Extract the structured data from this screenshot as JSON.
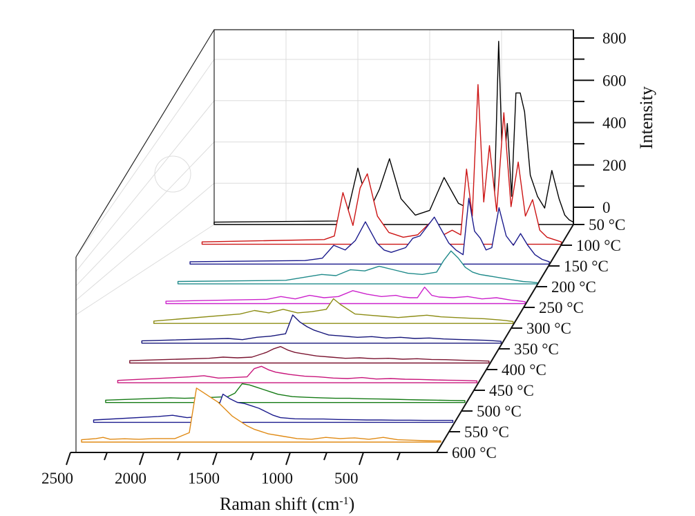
{
  "chart_data": {
    "type": "line",
    "subtype": "3d-waterfall",
    "xlabel_main": "Raman shift (cm",
    "xlabel_sup": "-1",
    "xlabel_close": ")",
    "zlabel": "Intensity",
    "x_ticks": [
      "2500",
      "2000",
      "1500",
      "1000",
      "500"
    ],
    "x_tick_values": [
      2500,
      2000,
      1500,
      1000,
      500
    ],
    "xlim": [
      2500,
      0
    ],
    "z_ticks": [
      "800",
      "600",
      "400",
      "200",
      "0"
    ],
    "z_tick_values": [
      800,
      600,
      400,
      200,
      0
    ],
    "zlim": [
      0,
      800
    ],
    "grid": true,
    "series": [
      {
        "name": "50 °C",
        "color": "#000000",
        "x": [
          2500,
          1650,
          1580,
          1500,
          1420,
          1350,
          1280,
          1200,
          1100,
          1000,
          900,
          800,
          700,
          600,
          550,
          520,
          490,
          460,
          430,
          400,
          370,
          340,
          300,
          250,
          200,
          150,
          100,
          60,
          30,
          0
        ],
        "values": [
          10,
          15,
          30,
          240,
          60,
          150,
          280,
          110,
          40,
          60,
          200,
          90,
          60,
          35,
          110,
          780,
          180,
          430,
          120,
          560,
          560,
          480,
          210,
          120,
          70,
          230,
          110,
          40,
          20,
          10
        ]
      },
      {
        "name": "100 °C",
        "color": "#cc1414",
        "x": [
          2500,
          1650,
          1580,
          1520,
          1450,
          1400,
          1350,
          1280,
          1200,
          1100,
          1000,
          900,
          820,
          760,
          700,
          660,
          620,
          580,
          540,
          500,
          450,
          400,
          350,
          300,
          250,
          200,
          150,
          100,
          50,
          0
        ],
        "values": [
          10,
          20,
          35,
          220,
          80,
          240,
          300,
          120,
          50,
          30,
          40,
          100,
          40,
          60,
          40,
          320,
          120,
          680,
          180,
          420,
          140,
          560,
          160,
          350,
          120,
          190,
          60,
          30,
          20,
          10
        ]
      },
      {
        "name": "150 °C",
        "color": "#1a1a8c",
        "x": [
          2500,
          1700,
          1580,
          1500,
          1420,
          1350,
          1280,
          1200,
          1150,
          1100,
          1000,
          950,
          900,
          800,
          700,
          650,
          600,
          560,
          520,
          480,
          440,
          400,
          350,
          300,
          250,
          200,
          150,
          100,
          50,
          0
        ],
        "values": [
          10,
          15,
          25,
          80,
          60,
          100,
          180,
          90,
          60,
          50,
          70,
          110,
          120,
          200,
          90,
          60,
          40,
          280,
          140,
          110,
          60,
          70,
          240,
          120,
          80,
          130,
          80,
          40,
          20,
          10
        ]
      },
      {
        "name": "200 °C",
        "color": "#1f8a8a",
        "x": [
          2500,
          1750,
          1600,
          1500,
          1400,
          1300,
          1200,
          1100,
          1000,
          900,
          800,
          700,
          650,
          600,
          550,
          500,
          450,
          400,
          350,
          300,
          250,
          200,
          150,
          100,
          50,
          0
        ],
        "values": [
          10,
          15,
          30,
          40,
          35,
          60,
          55,
          75,
          60,
          45,
          40,
          50,
          100,
          140,
          110,
          70,
          50,
          40,
          35,
          30,
          25,
          20,
          15,
          10,
          8,
          5
        ]
      },
      {
        "name": "250 °C",
        "color": "#cc22cc",
        "x": [
          2500,
          1800,
          1700,
          1600,
          1500,
          1400,
          1300,
          1200,
          1100,
          1000,
          900,
          850,
          800,
          750,
          700,
          650,
          600,
          500,
          400,
          300,
          200,
          100,
          50,
          0
        ],
        "values": [
          10,
          18,
          30,
          20,
          35,
          25,
          30,
          55,
          40,
          30,
          35,
          28,
          25,
          25,
          70,
          35,
          28,
          25,
          30,
          20,
          25,
          15,
          12,
          8
        ]
      },
      {
        "name": "300 °C",
        "color": "#8c8c14",
        "x": [
          2500,
          1900,
          1800,
          1700,
          1600,
          1500,
          1400,
          1300,
          1250,
          1200,
          1150,
          1100,
          1000,
          900,
          800,
          700,
          600,
          500,
          400,
          300,
          200,
          100,
          50,
          0
        ],
        "values": [
          10,
          40,
          55,
          45,
          60,
          45,
          50,
          60,
          105,
          80,
          60,
          40,
          35,
          30,
          25,
          30,
          35,
          28,
          25,
          22,
          20,
          15,
          12,
          8
        ]
      },
      {
        "name": "350 °C",
        "color": "#15157a",
        "x": [
          2500,
          1900,
          1800,
          1700,
          1600,
          1500,
          1450,
          1400,
          1350,
          1300,
          1250,
          1200,
          1100,
          1000,
          900,
          800,
          700,
          600,
          500,
          400,
          300,
          200,
          100,
          0
        ],
        "values": [
          10,
          20,
          15,
          25,
          30,
          40,
          120,
          90,
          70,
          55,
          45,
          35,
          30,
          25,
          28,
          22,
          25,
          20,
          22,
          18,
          16,
          14,
          12,
          8
        ]
      },
      {
        "name": "400 °C",
        "color": "#7a1430",
        "x": [
          2500,
          1950,
          1850,
          1750,
          1650,
          1550,
          1500,
          1450,
          1400,
          1350,
          1300,
          1200,
          1100,
          1000,
          900,
          800,
          700,
          600,
          500,
          400,
          300,
          200,
          100,
          0
        ],
        "values": [
          10,
          20,
          25,
          22,
          25,
          45,
          60,
          70,
          55,
          45,
          40,
          30,
          25,
          20,
          22,
          18,
          20,
          16,
          18,
          15,
          14,
          12,
          10,
          8
        ]
      },
      {
        "name": "450 °C",
        "color": "#c8147a",
        "x": [
          2500,
          2000,
          1900,
          1800,
          1700,
          1600,
          1550,
          1500,
          1450,
          1400,
          1350,
          1300,
          1200,
          1100,
          1000,
          900,
          800,
          700,
          600,
          500,
          400,
          300,
          200,
          100,
          0
        ],
        "values": [
          10,
          25,
          30,
          20,
          22,
          25,
          60,
          70,
          55,
          45,
          40,
          35,
          28,
          25,
          20,
          18,
          22,
          16,
          18,
          15,
          14,
          12,
          11,
          10,
          8
        ]
      },
      {
        "name": "500 °C",
        "color": "#147a14",
        "x": [
          2500,
          2050,
          1950,
          1850,
          1750,
          1650,
          1600,
          1550,
          1500,
          1450,
          1400,
          1350,
          1300,
          1200,
          1100,
          1000,
          900,
          800,
          700,
          600,
          500,
          400,
          300,
          200,
          100,
          0
        ],
        "values": [
          10,
          20,
          18,
          20,
          22,
          25,
          40,
          80,
          75,
          65,
          55,
          45,
          35,
          25,
          22,
          20,
          18,
          18,
          16,
          15,
          14,
          12,
          11,
          10,
          9,
          8
        ]
      },
      {
        "name": "550 °C",
        "color": "#1a1a8c",
        "x": [
          2500,
          2050,
          1950,
          1850,
          1750,
          1700,
          1650,
          1600,
          1550,
          1500,
          1450,
          1400,
          1350,
          1300,
          1250,
          1200,
          1100,
          1000,
          900,
          800,
          700,
          600,
          500,
          400,
          300,
          200,
          100,
          0
        ],
        "values": [
          10,
          25,
          30,
          20,
          25,
          30,
          35,
          120,
          100,
          85,
          80,
          70,
          60,
          45,
          30,
          20,
          15,
          14,
          14,
          12,
          11,
          10,
          10,
          9,
          9,
          8,
          8,
          8
        ]
      },
      {
        "name": "600 °C",
        "color": "#e08a14",
        "x": [
          2500,
          2400,
          2350,
          2300,
          2200,
          2100,
          2000,
          1850,
          1750,
          1700,
          1650,
          1600,
          1550,
          1500,
          1450,
          1400,
          1350,
          1300,
          1250,
          1200,
          1100,
          1000,
          900,
          800,
          700,
          600,
          500,
          400,
          300,
          200,
          100,
          0
        ],
        "values": [
          10,
          15,
          20,
          12,
          14,
          12,
          15,
          15,
          40,
          230,
          210,
          190,
          170,
          140,
          110,
          90,
          70,
          55,
          45,
          35,
          25,
          15,
          12,
          20,
          15,
          18,
          12,
          20,
          10,
          8,
          6,
          5
        ]
      }
    ]
  }
}
